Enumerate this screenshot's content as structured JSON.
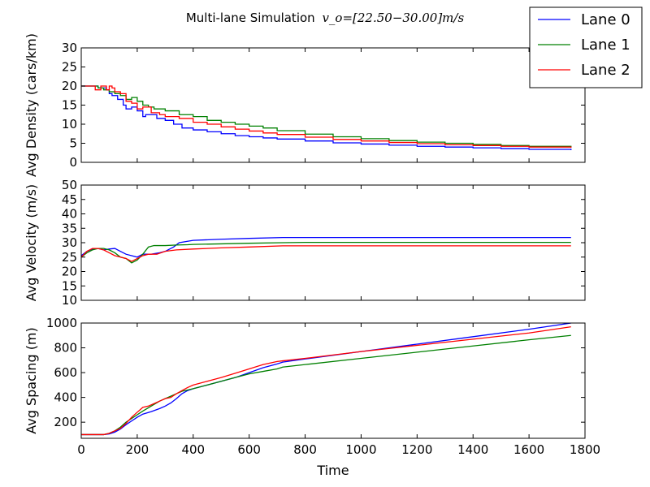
{
  "figure": {
    "title": "Multi-lane Simulation",
    "title_math": "v_o=[22.50−30.00]m/s",
    "xlabel": "Time"
  },
  "legend": {
    "placement": "top-right",
    "entries": [
      {
        "name": "Lane 0",
        "color": "#0000ff"
      },
      {
        "name": "Lane 1",
        "color": "#008000"
      },
      {
        "name": "Lane 2",
        "color": "#ff0000"
      }
    ]
  },
  "chart_data": [
    {
      "type": "line",
      "ylabel": "Avg Density (cars/km)",
      "xlim": [
        0,
        1800
      ],
      "ylim": [
        0,
        30
      ],
      "xticks": [
        "0",
        "200",
        "400",
        "600",
        "800",
        "1000",
        "1200",
        "1400",
        "1600",
        "1800"
      ],
      "yticks": [
        "0",
        "5",
        "10",
        "15",
        "20",
        "25",
        "30"
      ],
      "xtick_labels_visible": false,
      "series": [
        {
          "name": "Lane 0",
          "color": "#0000ff",
          "steps": true,
          "x": [
            0,
            30,
            60,
            90,
            100,
            110,
            130,
            150,
            160,
            180,
            200,
            220,
            230,
            250,
            270,
            300,
            330,
            360,
            400,
            450,
            500,
            550,
            600,
            650,
            700,
            800,
            900,
            1000,
            1100,
            1200,
            1300,
            1400,
            1500,
            1600,
            1750
          ],
          "y": [
            20,
            20,
            19.5,
            19,
            18,
            17.5,
            16.5,
            15,
            14,
            14.5,
            13.5,
            12,
            12.5,
            12.5,
            11.5,
            11,
            10,
            9,
            8.5,
            8,
            7.5,
            7,
            6.7,
            6.4,
            6.1,
            5.6,
            5.1,
            4.8,
            4.5,
            4.2,
            4,
            3.8,
            3.6,
            3.4,
            3.2
          ]
        },
        {
          "name": "Lane 1",
          "color": "#008000",
          "steps": true,
          "x": [
            0,
            40,
            60,
            80,
            100,
            120,
            140,
            160,
            180,
            200,
            220,
            240,
            260,
            300,
            350,
            400,
            450,
            500,
            550,
            600,
            650,
            700,
            800,
            900,
            1000,
            1100,
            1200,
            1300,
            1400,
            1500,
            1600,
            1750
          ],
          "y": [
            20,
            20,
            19.5,
            19,
            18.5,
            18,
            17.5,
            16.5,
            17,
            16,
            15,
            14.5,
            14,
            13.5,
            12.5,
            12,
            11,
            10.5,
            10,
            9.5,
            9,
            8.3,
            7.4,
            6.7,
            6.2,
            5.7,
            5.3,
            5,
            4.7,
            4.4,
            4.2,
            4
          ]
        },
        {
          "name": "Lane 2",
          "color": "#ff0000",
          "steps": true,
          "x": [
            0,
            50,
            70,
            80,
            90,
            100,
            110,
            120,
            140,
            160,
            180,
            200,
            220,
            250,
            280,
            300,
            350,
            400,
            450,
            500,
            550,
            600,
            650,
            700,
            800,
            900,
            1000,
            1100,
            1200,
            1300,
            1400,
            1500,
            1600,
            1750
          ],
          "y": [
            20,
            19,
            20,
            20,
            19,
            20,
            19.5,
            18.5,
            18,
            16,
            15.5,
            14,
            14.5,
            13,
            12.5,
            12,
            11.5,
            10.5,
            10,
            9.3,
            8.7,
            8.2,
            7.7,
            7.3,
            6.6,
            6,
            5.6,
            5.2,
            4.9,
            4.6,
            4.4,
            4.2,
            4,
            3.8
          ]
        }
      ]
    },
    {
      "type": "line",
      "ylabel": "Avg Velocity (m/s)",
      "xlim": [
        0,
        1800
      ],
      "ylim": [
        10,
        50
      ],
      "xticks": [
        "0",
        "200",
        "400",
        "600",
        "800",
        "1000",
        "1200",
        "1400",
        "1600",
        "1800"
      ],
      "yticks": [
        "10",
        "15",
        "20",
        "25",
        "30",
        "35",
        "40",
        "45",
        "50"
      ],
      "xtick_labels_visible": false,
      "series": [
        {
          "name": "Lane 0",
          "color": "#0000ff",
          "x": [
            0,
            20,
            40,
            60,
            80,
            100,
            120,
            140,
            160,
            180,
            200,
            220,
            250,
            280,
            300,
            330,
            350,
            380,
            400,
            500,
            600,
            720,
            800,
            1000,
            1200,
            1400,
            1600,
            1750
          ],
          "y": [
            25.5,
            27,
            27.8,
            28,
            27.5,
            27.8,
            28,
            27,
            26,
            25.5,
            25,
            26,
            26,
            26.5,
            27,
            28.5,
            30,
            30.5,
            30.8,
            31.2,
            31.5,
            31.8,
            31.8,
            31.8,
            31.8,
            31.8,
            31.8,
            31.8
          ]
        },
        {
          "name": "Lane 1",
          "color": "#008000",
          "x": [
            0,
            20,
            40,
            60,
            80,
            100,
            120,
            140,
            160,
            180,
            200,
            220,
            240,
            260,
            300,
            340,
            380,
            400,
            500,
            600,
            720,
            800,
            1000,
            1200,
            1400,
            1600,
            1750
          ],
          "y": [
            25,
            26.5,
            27.5,
            28,
            28,
            27.5,
            26.5,
            25,
            24.5,
            23,
            24,
            26,
            28.5,
            29,
            29,
            29.2,
            29.3,
            29.4,
            29.6,
            29.8,
            30,
            30.1,
            30.1,
            30.1,
            30.1,
            30.1,
            30.1
          ]
        },
        {
          "name": "Lane 2",
          "color": "#ff0000",
          "x": [
            0,
            20,
            40,
            60,
            80,
            100,
            120,
            140,
            160,
            180,
            200,
            220,
            240,
            270,
            300,
            340,
            400,
            500,
            600,
            720,
            800,
            1000,
            1200,
            1400,
            1600,
            1750
          ],
          "y": [
            25,
            27,
            28,
            28,
            27.5,
            26.5,
            25.5,
            25,
            24.5,
            23.5,
            24.5,
            25.5,
            26,
            26,
            27,
            27.5,
            27.8,
            28.2,
            28.5,
            28.9,
            28.9,
            28.9,
            28.9,
            28.9,
            28.9,
            28.9
          ]
        }
      ]
    },
    {
      "type": "line",
      "ylabel": "Avg Spacing (m)",
      "xlim": [
        0,
        1800
      ],
      "ylim": [
        70,
        1000
      ],
      "xticks": [
        "0",
        "200",
        "400",
        "600",
        "800",
        "1000",
        "1200",
        "1400",
        "1600",
        "1800"
      ],
      "yticks": [
        "200",
        "400",
        "600",
        "800",
        "1000"
      ],
      "xtick_labels_visible": true,
      "series": [
        {
          "name": "Lane 0",
          "color": "#0000ff",
          "x": [
            0,
            60,
            80,
            100,
            120,
            140,
            160,
            180,
            200,
            220,
            250,
            280,
            300,
            320,
            340,
            360,
            380,
            400,
            450,
            500,
            550,
            600,
            650,
            700,
            720,
            800,
            1000,
            1200,
            1400,
            1600,
            1750
          ],
          "y": [
            100,
            100,
            100,
            105,
            120,
            145,
            180,
            210,
            240,
            265,
            285,
            310,
            330,
            355,
            390,
            430,
            455,
            470,
            500,
            530,
            560,
            600,
            640,
            670,
            685,
            710,
            770,
            830,
            890,
            950,
            1000
          ]
        },
        {
          "name": "Lane 1",
          "color": "#008000",
          "x": [
            0,
            60,
            80,
            100,
            120,
            140,
            160,
            180,
            200,
            220,
            250,
            280,
            300,
            320,
            340,
            360,
            380,
            400,
            450,
            500,
            550,
            600,
            650,
            700,
            720,
            800,
            1000,
            1200,
            1400,
            1600,
            1750
          ],
          "y": [
            100,
            100,
            100,
            110,
            130,
            160,
            200,
            230,
            260,
            290,
            330,
            370,
            390,
            410,
            430,
            450,
            460,
            470,
            500,
            530,
            560,
            590,
            610,
            630,
            645,
            665,
            715,
            765,
            815,
            865,
            900
          ]
        },
        {
          "name": "Lane 2",
          "color": "#ff0000",
          "x": [
            0,
            60,
            80,
            100,
            120,
            140,
            160,
            180,
            200,
            220,
            240,
            260,
            280,
            300,
            320,
            340,
            360,
            380,
            400,
            450,
            500,
            550,
            600,
            650,
            700,
            720,
            800,
            1000,
            1200,
            1400,
            1600,
            1750
          ],
          "y": [
            100,
            100,
            100,
            110,
            130,
            150,
            190,
            240,
            280,
            320,
            330,
            350,
            370,
            390,
            400,
            430,
            455,
            480,
            500,
            530,
            560,
            595,
            630,
            665,
            690,
            695,
            715,
            770,
            820,
            870,
            920,
            970
          ]
        }
      ]
    }
  ]
}
